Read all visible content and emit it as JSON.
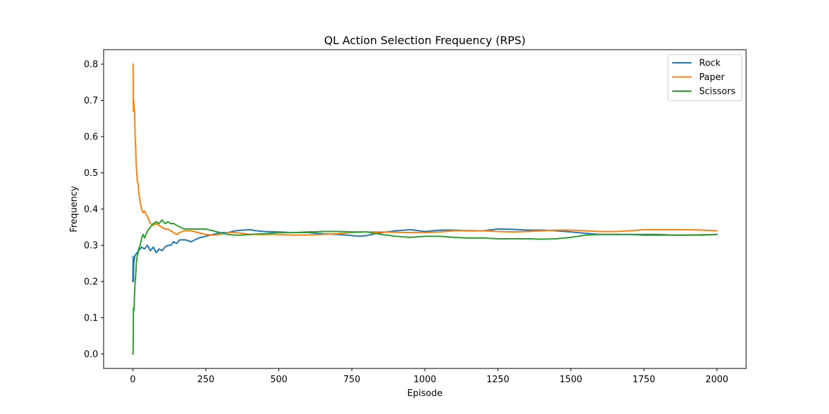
{
  "chart_data": {
    "type": "line",
    "title": "QL Action Selection Frequency (RPS)",
    "xlabel": "Episode",
    "ylabel": "Frequency",
    "xlim": [
      -100,
      2100
    ],
    "ylim": [
      -0.04,
      0.84
    ],
    "xticks": [
      0,
      250,
      500,
      750,
      1000,
      1250,
      1500,
      1750,
      2000
    ],
    "xtick_labels": [
      "0",
      "250",
      "500",
      "750",
      "1000",
      "1250",
      "1500",
      "1750",
      "2000"
    ],
    "yticks": [
      0.0,
      0.1,
      0.2,
      0.3,
      0.4,
      0.5,
      0.6,
      0.7,
      0.8
    ],
    "ytick_labels": [
      "0.0",
      "0.1",
      "0.2",
      "0.3",
      "0.4",
      "0.5",
      "0.6",
      "0.7",
      "0.8"
    ],
    "grid": false,
    "legend_position": "top-right",
    "series": [
      {
        "name": "Rock",
        "color": "#1f77b4",
        "points": [
          [
            0,
            0.2
          ],
          [
            1,
            0.27
          ],
          [
            2,
            0.2
          ],
          [
            3,
            0.25
          ],
          [
            5,
            0.26
          ],
          [
            7,
            0.27
          ],
          [
            10,
            0.275
          ],
          [
            15,
            0.28
          ],
          [
            20,
            0.285
          ],
          [
            25,
            0.29
          ],
          [
            30,
            0.295
          ],
          [
            40,
            0.29
          ],
          [
            50,
            0.3
          ],
          [
            60,
            0.285
          ],
          [
            70,
            0.295
          ],
          [
            80,
            0.28
          ],
          [
            90,
            0.29
          ],
          [
            100,
            0.285
          ],
          [
            110,
            0.295
          ],
          [
            120,
            0.3
          ],
          [
            130,
            0.3
          ],
          [
            140,
            0.31
          ],
          [
            150,
            0.305
          ],
          [
            160,
            0.315
          ],
          [
            180,
            0.315
          ],
          [
            200,
            0.31
          ],
          [
            225,
            0.32
          ],
          [
            250,
            0.325
          ],
          [
            275,
            0.33
          ],
          [
            300,
            0.335
          ],
          [
            325,
            0.335
          ],
          [
            350,
            0.34
          ],
          [
            375,
            0.342
          ],
          [
            400,
            0.343
          ],
          [
            425,
            0.34
          ],
          [
            450,
            0.338
          ],
          [
            500,
            0.337
          ],
          [
            550,
            0.335
          ],
          [
            600,
            0.335
          ],
          [
            650,
            0.332
          ],
          [
            700,
            0.33
          ],
          [
            750,
            0.327
          ],
          [
            775,
            0.325
          ],
          [
            800,
            0.327
          ],
          [
            850,
            0.335
          ],
          [
            900,
            0.34
          ],
          [
            950,
            0.343
          ],
          [
            1000,
            0.338
          ],
          [
            1050,
            0.342
          ],
          [
            1100,
            0.342
          ],
          [
            1150,
            0.34
          ],
          [
            1200,
            0.34
          ],
          [
            1250,
            0.345
          ],
          [
            1300,
            0.344
          ],
          [
            1350,
            0.342
          ],
          [
            1400,
            0.342
          ],
          [
            1450,
            0.34
          ],
          [
            1500,
            0.337
          ],
          [
            1550,
            0.333
          ],
          [
            1600,
            0.33
          ],
          [
            1650,
            0.33
          ],
          [
            1700,
            0.33
          ],
          [
            1750,
            0.328
          ],
          [
            1800,
            0.328
          ],
          [
            1850,
            0.328
          ],
          [
            1900,
            0.328
          ],
          [
            1950,
            0.329
          ],
          [
            2000,
            0.33
          ]
        ]
      },
      {
        "name": "Paper",
        "color": "#ff7f0e",
        "points": [
          [
            0,
            0.8
          ],
          [
            1,
            0.8
          ],
          [
            2,
            0.67
          ],
          [
            3,
            0.7
          ],
          [
            4,
            0.68
          ],
          [
            6,
            0.67
          ],
          [
            8,
            0.6
          ],
          [
            10,
            0.56
          ],
          [
            12,
            0.52
          ],
          [
            15,
            0.48
          ],
          [
            18,
            0.47
          ],
          [
            20,
            0.45
          ],
          [
            25,
            0.42
          ],
          [
            30,
            0.4
          ],
          [
            35,
            0.39
          ],
          [
            40,
            0.395
          ],
          [
            45,
            0.385
          ],
          [
            50,
            0.38
          ],
          [
            55,
            0.37
          ],
          [
            60,
            0.36
          ],
          [
            70,
            0.355
          ],
          [
            80,
            0.36
          ],
          [
            90,
            0.355
          ],
          [
            100,
            0.35
          ],
          [
            110,
            0.345
          ],
          [
            120,
            0.345
          ],
          [
            130,
            0.34
          ],
          [
            140,
            0.335
          ],
          [
            150,
            0.33
          ],
          [
            160,
            0.335
          ],
          [
            175,
            0.34
          ],
          [
            200,
            0.34
          ],
          [
            225,
            0.335
          ],
          [
            250,
            0.33
          ],
          [
            275,
            0.328
          ],
          [
            300,
            0.33
          ],
          [
            325,
            0.335
          ],
          [
            350,
            0.335
          ],
          [
            375,
            0.333
          ],
          [
            400,
            0.33
          ],
          [
            450,
            0.33
          ],
          [
            500,
            0.33
          ],
          [
            550,
            0.328
          ],
          [
            600,
            0.328
          ],
          [
            650,
            0.33
          ],
          [
            700,
            0.332
          ],
          [
            750,
            0.335
          ],
          [
            800,
            0.337
          ],
          [
            850,
            0.337
          ],
          [
            900,
            0.336
          ],
          [
            950,
            0.335
          ],
          [
            1000,
            0.335
          ],
          [
            1050,
            0.337
          ],
          [
            1100,
            0.34
          ],
          [
            1150,
            0.341
          ],
          [
            1200,
            0.34
          ],
          [
            1250,
            0.338
          ],
          [
            1300,
            0.337
          ],
          [
            1350,
            0.338
          ],
          [
            1400,
            0.34
          ],
          [
            1450,
            0.342
          ],
          [
            1500,
            0.342
          ],
          [
            1550,
            0.34
          ],
          [
            1600,
            0.338
          ],
          [
            1650,
            0.338
          ],
          [
            1700,
            0.34
          ],
          [
            1750,
            0.343
          ],
          [
            1800,
            0.343
          ],
          [
            1850,
            0.343
          ],
          [
            1900,
            0.343
          ],
          [
            1950,
            0.342
          ],
          [
            2000,
            0.34
          ]
        ]
      },
      {
        "name": "Scissors",
        "color": "#2ca02c",
        "points": [
          [
            0,
            0.0
          ],
          [
            1,
            0.0
          ],
          [
            2,
            0.12
          ],
          [
            3,
            0.13
          ],
          [
            4,
            0.12
          ],
          [
            6,
            0.17
          ],
          [
            8,
            0.2
          ],
          [
            10,
            0.22
          ],
          [
            12,
            0.25
          ],
          [
            15,
            0.27
          ],
          [
            18,
            0.28
          ],
          [
            20,
            0.29
          ],
          [
            25,
            0.3
          ],
          [
            30,
            0.32
          ],
          [
            35,
            0.33
          ],
          [
            40,
            0.32
          ],
          [
            50,
            0.34
          ],
          [
            60,
            0.35
          ],
          [
            70,
            0.36
          ],
          [
            80,
            0.365
          ],
          [
            90,
            0.36
          ],
          [
            100,
            0.37
          ],
          [
            110,
            0.36
          ],
          [
            120,
            0.365
          ],
          [
            130,
            0.36
          ],
          [
            140,
            0.36
          ],
          [
            150,
            0.355
          ],
          [
            175,
            0.345
          ],
          [
            200,
            0.345
          ],
          [
            225,
            0.345
          ],
          [
            250,
            0.345
          ],
          [
            275,
            0.34
          ],
          [
            300,
            0.335
          ],
          [
            325,
            0.33
          ],
          [
            350,
            0.328
          ],
          [
            375,
            0.328
          ],
          [
            400,
            0.33
          ],
          [
            450,
            0.332
          ],
          [
            500,
            0.335
          ],
          [
            550,
            0.335
          ],
          [
            600,
            0.337
          ],
          [
            650,
            0.338
          ],
          [
            700,
            0.338
          ],
          [
            750,
            0.337
          ],
          [
            800,
            0.337
          ],
          [
            850,
            0.33
          ],
          [
            900,
            0.325
          ],
          [
            950,
            0.322
          ],
          [
            1000,
            0.325
          ],
          [
            1050,
            0.325
          ],
          [
            1100,
            0.322
          ],
          [
            1150,
            0.32
          ],
          [
            1200,
            0.32
          ],
          [
            1250,
            0.318
          ],
          [
            1300,
            0.318
          ],
          [
            1350,
            0.318
          ],
          [
            1400,
            0.317
          ],
          [
            1450,
            0.318
          ],
          [
            1500,
            0.322
          ],
          [
            1550,
            0.328
          ],
          [
            1600,
            0.33
          ],
          [
            1650,
            0.33
          ],
          [
            1700,
            0.33
          ],
          [
            1750,
            0.33
          ],
          [
            1800,
            0.33
          ],
          [
            1850,
            0.328
          ],
          [
            1900,
            0.328
          ],
          [
            1950,
            0.328
          ],
          [
            2000,
            0.33
          ]
        ]
      }
    ]
  }
}
